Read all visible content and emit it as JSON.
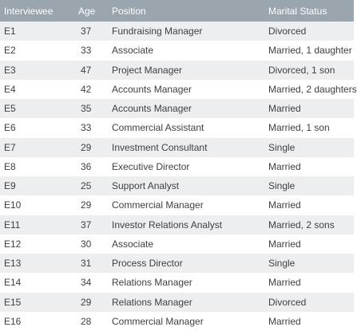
{
  "table": {
    "headers": {
      "interviewee": "Interviewee",
      "age": "Age",
      "position": "Position",
      "marital_status": "Marital Status"
    },
    "rows": [
      {
        "id": "E1",
        "age": "37",
        "position": "Fundraising Manager",
        "marital": "Divorced"
      },
      {
        "id": "E2",
        "age": "33",
        "position": "Associate",
        "marital": "Married, 1 daughter"
      },
      {
        "id": "E3",
        "age": "47",
        "position": "Project Manager",
        "marital": "Divorced, 1 son"
      },
      {
        "id": "E4",
        "age": "42",
        "position": "Accounts Manager",
        "marital": "Married, 2 daughters"
      },
      {
        "id": "E5",
        "age": "35",
        "position": "Accounts Manager",
        "marital": "Married"
      },
      {
        "id": "E6",
        "age": "33",
        "position": "Commercial Assistant",
        "marital": "Married, 1 son"
      },
      {
        "id": "E7",
        "age": "29",
        "position": "Investment Consultant",
        "marital": "Single"
      },
      {
        "id": "E8",
        "age": "36",
        "position": "Executive Director",
        "marital": "Married"
      },
      {
        "id": "E9",
        "age": "25",
        "position": "Support Analyst",
        "marital": "Single"
      },
      {
        "id": "E10",
        "age": "29",
        "position": "Commercial Manager",
        "marital": "Married"
      },
      {
        "id": "E11",
        "age": "37",
        "position": "Investor Relations Analyst",
        "marital": "Married, 2 sons"
      },
      {
        "id": "E12",
        "age": "30",
        "position": "Associate",
        "marital": "Married"
      },
      {
        "id": "E13",
        "age": "31",
        "position": "Process Director",
        "marital": "Single"
      },
      {
        "id": "E14",
        "age": "34",
        "position": "Relations Manager",
        "marital": "Married"
      },
      {
        "id": "E15",
        "age": "29",
        "position": "Relations Manager",
        "marital": "Divorced"
      },
      {
        "id": "E16",
        "age": "28",
        "position": "Commercial Manager",
        "marital": "Married"
      }
    ]
  }
}
